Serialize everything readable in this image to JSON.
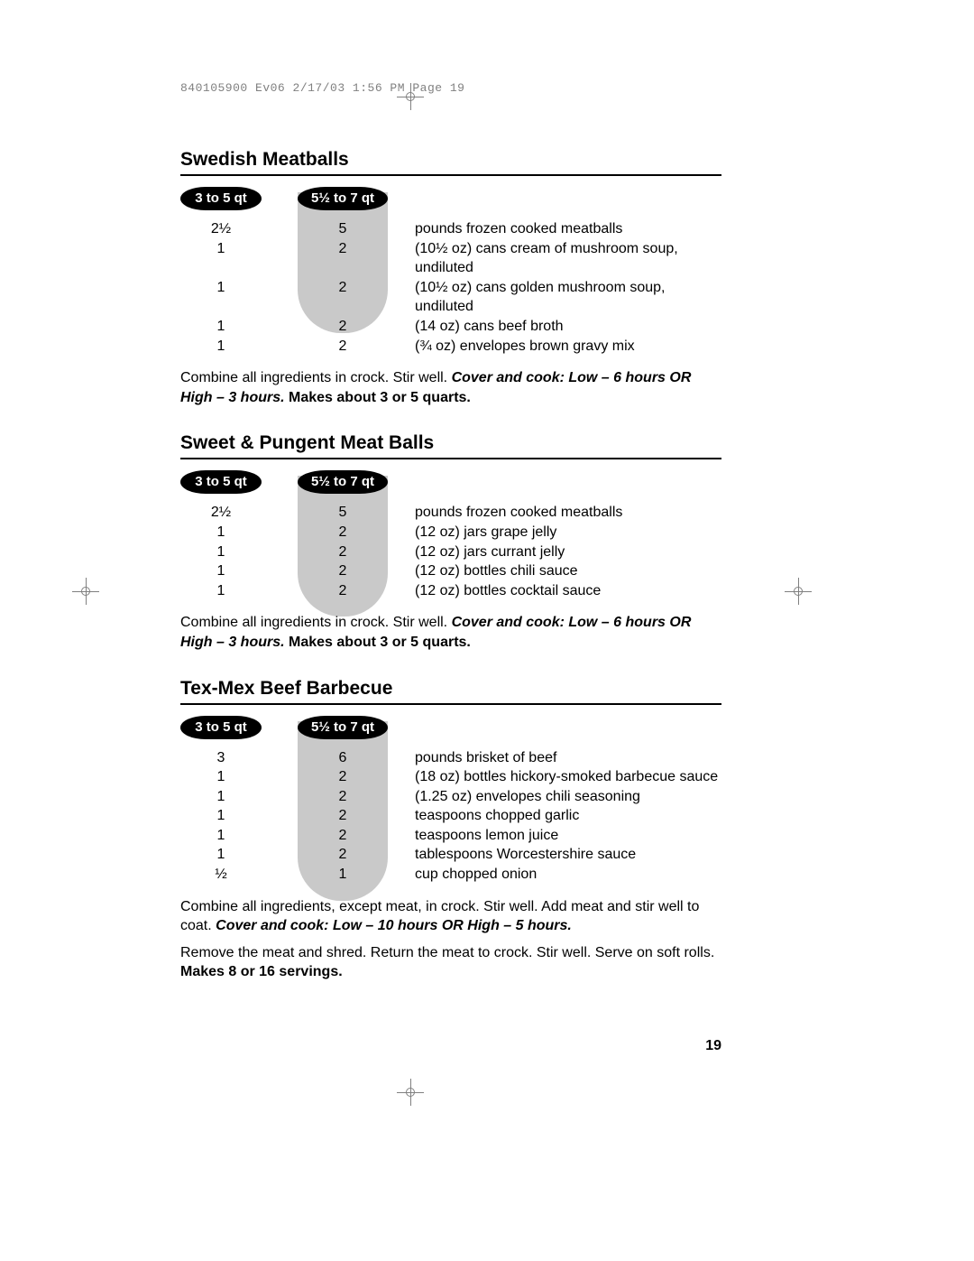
{
  "print_header": "840105900 Ev06 2/17/03 1:56 PM Page 19",
  "page_number": "19",
  "size_labels": {
    "small": "3 to 5 qt",
    "large": "5½ to 7 qt"
  },
  "colors": {
    "text": "#000000",
    "background": "#ffffff",
    "tab_bg": "#000000",
    "tab_text": "#ffffff",
    "shade": "#c9c9c9",
    "print_header": "#808080",
    "reg_mark": "#808080"
  },
  "typography": {
    "body_font": "Arial, Helvetica, sans-serif",
    "mono_font": "Courier New, monospace",
    "title_size_pt": 16,
    "body_size_pt": 12
  },
  "recipes": [
    {
      "title": "Swedish Meatballs",
      "rows": [
        {
          "a": "2½",
          "b": "5",
          "d": "pounds frozen cooked meatballs"
        },
        {
          "a": "1",
          "b": "2",
          "d": "(10½ oz) cans cream of mushroom soup, undiluted"
        },
        {
          "a": "1",
          "b": "2",
          "d": "(10½ oz) cans golden mushroom soup, undiluted"
        },
        {
          "a": "1",
          "b": "2",
          "d": "(14 oz) cans beef broth"
        },
        {
          "a": "1",
          "b": "2",
          "d": "(¾ oz) envelopes brown gravy mix"
        }
      ],
      "instr_pre": "Combine all ingredients in crock. Stir well. ",
      "instr_bold_italic": "Cover and cook: Low – 6 hours OR High – 3 hours.",
      "instr_bold_tail": " Makes about 3 or 5 quarts."
    },
    {
      "title": "Sweet & Pungent Meat Balls",
      "rows": [
        {
          "a": "2½",
          "b": "5",
          "d": "pounds frozen cooked meatballs"
        },
        {
          "a": "1",
          "b": "2",
          "d": "(12 oz) jars grape jelly"
        },
        {
          "a": "1",
          "b": "2",
          "d": "(12 oz) jars currant jelly"
        },
        {
          "a": "1",
          "b": "2",
          "d": "(12 oz) bottles chili sauce"
        },
        {
          "a": "1",
          "b": "2",
          "d": "(12 oz) bottles cocktail sauce"
        }
      ],
      "instr_pre": "Combine all ingredients in crock. Stir well. ",
      "instr_bold_italic": "Cover and cook: Low – 6 hours OR High – 3 hours.",
      "instr_bold_tail": " Makes about 3 or 5 quarts."
    },
    {
      "title": "Tex-Mex Beef Barbecue",
      "rows": [
        {
          "a": "3",
          "b": "6",
          "d": "pounds brisket of beef"
        },
        {
          "a": "1",
          "b": "2",
          "d": "(18 oz) bottles hickory-smoked barbecue sauce"
        },
        {
          "a": "1",
          "b": "2",
          "d": "(1.25 oz) envelopes chili seasoning"
        },
        {
          "a": "1",
          "b": "2",
          "d": "teaspoons chopped garlic"
        },
        {
          "a": "1",
          "b": "2",
          "d": "teaspoons lemon juice"
        },
        {
          "a": "1",
          "b": "2",
          "d": "tablespoons Worcestershire sauce"
        },
        {
          "a": "½",
          "b": "1",
          "d": "cup chopped onion"
        }
      ],
      "instr_pre": "Combine all ingredients, except meat, in crock. Stir well. Add meat and stir well to coat. ",
      "instr_bold_italic": "Cover and cook: Low – 10 hours OR High – 5 hours.",
      "instr2_pre": "Remove the meat and shred. Return the meat to crock. Stir well. Serve on soft rolls. ",
      "instr2_bold": "Makes 8 or 16 servings."
    }
  ]
}
